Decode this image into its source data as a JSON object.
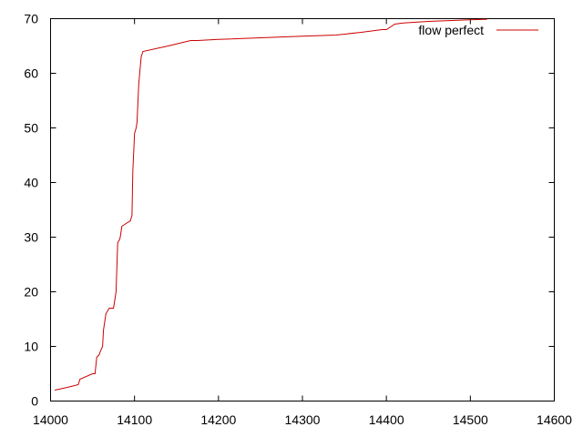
{
  "chart_data": {
    "type": "line",
    "xlim": [
      14000,
      14600
    ],
    "ylim": [
      0,
      70
    ],
    "xticks": [
      14000,
      14100,
      14200,
      14300,
      14400,
      14500,
      14600
    ],
    "yticks": [
      0,
      10,
      20,
      30,
      40,
      50,
      60,
      70
    ],
    "grid": false,
    "legend_position": "top-right",
    "series": [
      {
        "name": "flow perfect",
        "color": "#cc0000",
        "x": [
          14005,
          14020,
          14033,
          14035,
          14050,
          14053,
          14055,
          14058,
          14059,
          14062,
          14063,
          14065,
          14066,
          14070,
          14075,
          14077,
          14078,
          14080,
          14082,
          14083,
          14085,
          14090,
          14095,
          14097,
          14098,
          14100,
          14101,
          14102,
          14103,
          14105,
          14108,
          14110,
          14140,
          14167,
          14175,
          14200,
          14250,
          14300,
          14340,
          14370,
          14395,
          14400,
          14410,
          14420,
          14450,
          14500,
          14520
        ],
        "y": [
          2,
          2.5,
          3,
          4,
          5,
          5,
          8,
          8.5,
          9,
          10,
          13,
          15,
          16,
          17,
          17,
          19,
          20,
          29,
          29.5,
          30,
          32,
          32.5,
          33,
          34,
          42,
          49,
          49.5,
          50,
          51,
          58,
          63,
          64,
          65,
          66,
          66,
          66.2,
          66.5,
          66.8,
          67,
          67.5,
          68,
          68,
          69,
          69.2,
          69.5,
          69.8,
          69.9
        ]
      }
    ]
  }
}
